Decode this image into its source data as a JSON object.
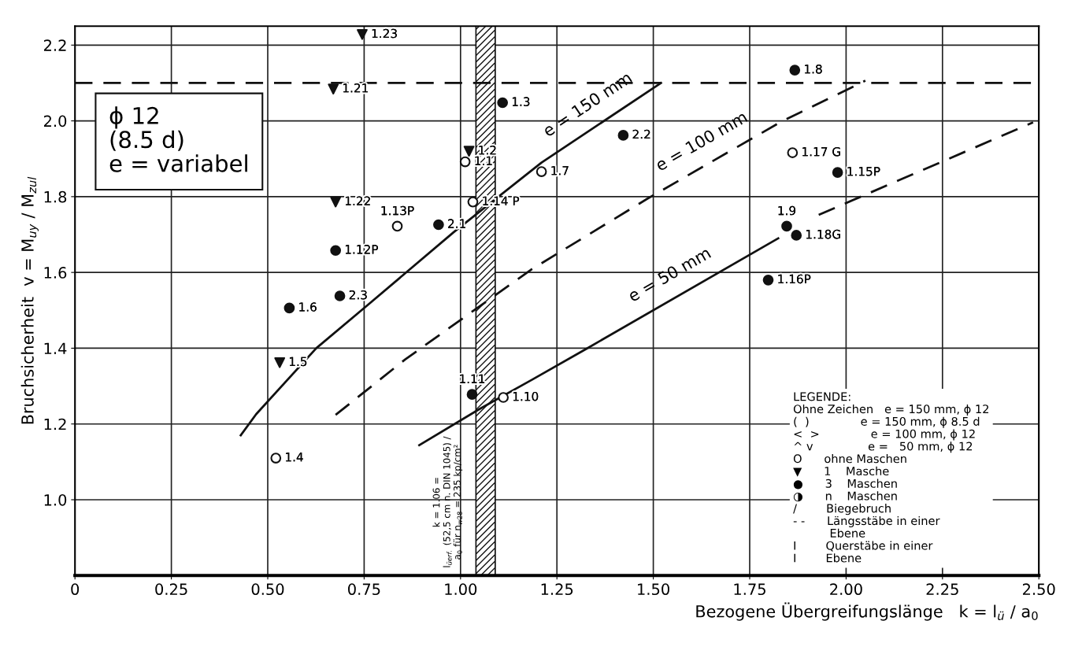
{
  "chart_data": {
    "type": "scatter",
    "xlabel": "Bezogene Übergreifungslänge   k = l$_{ü}$ / a$_{0}$",
    "ylabel": "Bruchsicherheit  v = M$_{uy}$ / M$_{zul}$",
    "xlim": [
      0,
      2.5
    ],
    "ylim": [
      0.8,
      2.25
    ],
    "xticks": [
      0,
      0.25,
      {
        "value": 0.5,
        "label": "0.50"
      },
      0.75,
      {
        "value": 1.0,
        "label": "1.00"
      },
      1.25,
      {
        "value": 1.5,
        "label": "1.50"
      },
      1.75,
      {
        "value": 2.0,
        "label": "2.00"
      },
      2.25,
      {
        "value": 2.5,
        "label": "2.50"
      }
    ],
    "yticks": [
      {
        "value": 1.0,
        "label": "1.0"
      },
      1.2,
      1.4,
      1.6,
      1.8,
      {
        "value": 2.0,
        "label": "2.0"
      },
      2.2
    ],
    "grid": true,
    "series": [
      {
        "marker": "circle",
        "color": "#ffffff",
        "x": [
          1.012,
          0.521,
          1.21,
          1.111
        ],
        "values": [
          1.892,
          1.11,
          1.866,
          1.27
        ]
      },
      {
        "marker": "triangle",
        "color": "#111111",
        "x": [
          0.745,
          0.67,
          1.022,
          0.676,
          0.531
        ],
        "values": [
          2.228,
          2.084,
          1.92,
          1.786,
          1.362
        ]
      },
      {
        "marker": "circle",
        "color": "#111111",
        "x": [
          1.109,
          0.943,
          0.676,
          0.687,
          0.556,
          1.03,
          1.422,
          1.867,
          1.978,
          1.846,
          1.871,
          1.798
        ],
        "values": [
          2.048,
          1.726,
          1.658,
          1.538,
          1.506,
          1.278,
          1.962,
          2.134,
          1.864,
          1.722,
          1.698,
          1.58
        ]
      },
      {
        "marker": "circle",
        "color": "#ffffff",
        "x": [
          1.032,
          0.836,
          1.861
        ],
        "values": [
          1.786,
          1.722,
          1.916
        ]
      },
      {
        "type": "line",
        "name": "e = 150 mm",
        "line_style": "solid",
        "color": "#111111",
        "x": [
          0.43,
          0.47,
          0.626,
          0.757,
          0.982,
          1.21,
          1.52
        ],
        "values": [
          1.17,
          1.226,
          1.4,
          1.512,
          1.706,
          1.89,
          2.1
        ]
      },
      {
        "type": "line",
        "name": "e = 100 mm",
        "line_style": "dashed",
        "color": "#111111",
        "x": [
          0.676,
          0.856,
          1.09,
          1.184,
          1.487,
          1.832,
          2.05
        ],
        "values": [
          1.224,
          1.37,
          1.54,
          1.608,
          1.796,
          1.998,
          2.106
        ]
      },
      {
        "type": "line",
        "name": "e = 50 mm",
        "line_style": "solid",
        "color": "#111111",
        "x": [
          0.893,
          1.05,
          1.184,
          1.329,
          1.824
        ],
        "values": [
          1.144,
          1.24,
          1.316,
          1.4,
          1.69
        ]
      },
      {
        "type": "line",
        "line_style": "dashed",
        "color": "#111111",
        "x": [
          1.929,
          2.485
        ],
        "values": [
          1.752,
          1.996
        ]
      }
    ],
    "ref_lines": [
      {
        "axis": "y",
        "value": 2.1,
        "line_style": "dashed",
        "color": "#111111"
      }
    ],
    "bands": [
      {
        "axis": "x",
        "from": 1.04,
        "to": 1.09,
        "color": "#111111",
        "label": "k = 1.06 =\nl$_{üerf.}$ (52,5 cm n. DIN 1045) /\na$_{0}$ für n$_{w28}$ = 235 kp/cm²"
      }
    ],
    "annotations": [
      "ϕ 12\n(8.5 d)\ne = variabel",
      "LEGENDE:\nOhne Zeichen   e = 150 mm, ϕ 12\n(  )              e = 150 mm, ϕ 8.5 d\n<  >              e = 100 mm, ϕ 12\n^ v               e =   50 mm, ϕ 12\nO      ohne Maschen\n▼      1    Masche\n●      3    Maschen\n◑      n    Maschen\n/        Biegebruch\n- -      Längsstäbe in einer\n          Ebene\nI        Querstäbe in einer\nI        Ebene",
      {
        "text": "1.1",
        "x": 1.012,
        "y": 1.892
      },
      {
        "text": "1.4",
        "x": 0.521,
        "y": 1.11
      },
      {
        "text": "1.7",
        "x": 1.21,
        "y": 1.866
      },
      {
        "text": "1.10",
        "x": 1.111,
        "y": 1.27
      },
      {
        "text": "1.23",
        "x": 0.745,
        "y": 2.228
      },
      {
        "text": "1.21",
        "x": 0.67,
        "y": 2.084
      },
      {
        "text": "1.2",
        "x": 1.022,
        "y": 1.92
      },
      {
        "text": "1.22",
        "x": 0.676,
        "y": 1.786
      },
      {
        "text": "1.5",
        "x": 0.531,
        "y": 1.362
      },
      {
        "text": "1.3",
        "x": 1.109,
        "y": 2.048
      },
      {
        "text": "2.1",
        "x": 0.943,
        "y": 1.726
      },
      {
        "text": "1.12P",
        "x": 0.676,
        "y": 1.658
      },
      {
        "text": "2.3",
        "x": 0.687,
        "y": 1.538
      },
      {
        "text": "1.6",
        "x": 0.556,
        "y": 1.506
      },
      {
        "text": "1.11",
        "x": 1.03,
        "y": 1.278
      },
      {
        "text": "2.2",
        "x": 1.422,
        "y": 1.962
      },
      {
        "text": "1.8",
        "x": 1.867,
        "y": 2.134
      },
      {
        "text": "1.15P",
        "x": 1.978,
        "y": 1.864
      },
      {
        "text": "1.9",
        "x": 1.846,
        "y": 1.722
      },
      {
        "text": "1.18G",
        "x": 1.871,
        "y": 1.698
      },
      {
        "text": "1.16P",
        "x": 1.798,
        "y": 1.58
      },
      {
        "text": "1.14 P",
        "x": 1.032,
        "y": 1.786
      },
      {
        "text": "1.13P",
        "x": 0.836,
        "y": 1.722
      },
      {
        "text": "1.17 G",
        "x": 1.861,
        "y": 1.916
      }
    ]
  }
}
